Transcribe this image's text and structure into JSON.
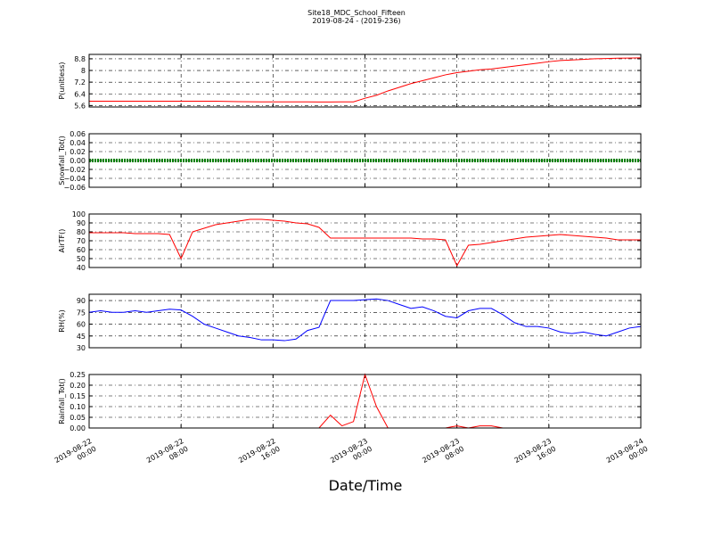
{
  "chart_data": [
    {
      "type": "line",
      "title": "Site18_MDC_School_Fifteen",
      "subtitle": "2019-08-24 - (2019-236)",
      "ylabel": "P(unitless)",
      "x": [
        "2019-08-22 00:00",
        "2019-08-22 01:00",
        "2019-08-22 02:00",
        "2019-08-22 03:00",
        "2019-08-22 04:00",
        "2019-08-22 05:00",
        "2019-08-22 06:00",
        "2019-08-22 07:00",
        "2019-08-22 08:00",
        "2019-08-22 09:00",
        "2019-08-22 10:00",
        "2019-08-22 11:00",
        "2019-08-22 12:00",
        "2019-08-22 13:00",
        "2019-08-22 14:00",
        "2019-08-22 15:00",
        "2019-08-22 16:00",
        "2019-08-22 17:00",
        "2019-08-22 18:00",
        "2019-08-22 19:00",
        "2019-08-22 20:00",
        "2019-08-22 21:00",
        "2019-08-22 22:00",
        "2019-08-22 23:00",
        "2019-08-23 00:00",
        "2019-08-23 01:00",
        "2019-08-23 02:00",
        "2019-08-23 03:00",
        "2019-08-23 04:00",
        "2019-08-23 05:00",
        "2019-08-23 06:00",
        "2019-08-23 07:00",
        "2019-08-23 08:00",
        "2019-08-23 09:00",
        "2019-08-23 10:00",
        "2019-08-23 11:00",
        "2019-08-23 12:00",
        "2019-08-23 13:00",
        "2019-08-23 14:00",
        "2019-08-23 15:00",
        "2019-08-23 16:00",
        "2019-08-23 17:00",
        "2019-08-23 18:00",
        "2019-08-23 19:00",
        "2019-08-23 20:00",
        "2019-08-23 21:00",
        "2019-08-23 22:00",
        "2019-08-23 23:00",
        "2019-08-24 00:00"
      ],
      "series": [
        {
          "color": "#ff0000",
          "values": [
            5.9,
            5.9,
            5.9,
            5.9,
            5.9,
            5.9,
            5.9,
            5.9,
            5.9,
            5.9,
            5.9,
            5.9,
            5.88,
            5.87,
            5.86,
            5.85,
            5.85,
            5.85,
            5.85,
            5.85,
            5.84,
            5.84,
            5.85,
            5.85,
            6.1,
            6.3,
            6.6,
            6.85,
            7.1,
            7.3,
            7.5,
            7.7,
            7.85,
            7.95,
            8.05,
            8.1,
            8.2,
            8.3,
            8.4,
            8.5,
            8.6,
            8.68,
            8.72,
            8.76,
            8.8,
            8.82,
            8.84,
            8.85,
            8.86
          ]
        }
      ],
      "xlim": [
        "2019-08-22 00:00",
        "2019-08-24 00:00"
      ],
      "xticks": [
        "2019-08-22 00:00",
        "2019-08-22 08:00",
        "2019-08-22 16:00",
        "2019-08-23 00:00",
        "2019-08-23 08:00",
        "2019-08-23 16:00",
        "2019-08-24 00:00"
      ],
      "ylim": [
        5.5,
        9.1
      ],
      "yticks": [
        5.6,
        6.4,
        7.2,
        8.0,
        8.8
      ],
      "grid": true
    },
    {
      "type": "line",
      "ylabel": "Snowfall_Tot()",
      "x": [
        "2019-08-22 00:00",
        "2019-08-22 01:00",
        "2019-08-22 02:00",
        "2019-08-22 03:00",
        "2019-08-22 04:00",
        "2019-08-22 05:00",
        "2019-08-22 06:00",
        "2019-08-22 07:00",
        "2019-08-22 08:00",
        "2019-08-22 09:00",
        "2019-08-22 10:00",
        "2019-08-22 11:00",
        "2019-08-22 12:00",
        "2019-08-22 13:00",
        "2019-08-22 14:00",
        "2019-08-22 15:00",
        "2019-08-22 16:00",
        "2019-08-22 17:00",
        "2019-08-22 18:00",
        "2019-08-22 19:00",
        "2019-08-22 20:00",
        "2019-08-22 21:00",
        "2019-08-22 22:00",
        "2019-08-22 23:00",
        "2019-08-23 00:00",
        "2019-08-23 01:00",
        "2019-08-23 02:00",
        "2019-08-23 03:00",
        "2019-08-23 04:00",
        "2019-08-23 05:00",
        "2019-08-23 06:00",
        "2019-08-23 07:00",
        "2019-08-23 08:00",
        "2019-08-23 09:00",
        "2019-08-23 10:00",
        "2019-08-23 11:00",
        "2019-08-23 12:00",
        "2019-08-23 13:00",
        "2019-08-23 14:00",
        "2019-08-23 15:00",
        "2019-08-23 16:00",
        "2019-08-23 17:00",
        "2019-08-23 18:00",
        "2019-08-23 19:00",
        "2019-08-23 20:00",
        "2019-08-23 21:00",
        "2019-08-23 22:00",
        "2019-08-23 23:00",
        "2019-08-24 00:00"
      ],
      "series": [
        {
          "color": "#008000",
          "values": [
            0,
            0,
            0,
            0,
            0,
            0,
            0,
            0,
            0,
            0,
            0,
            0,
            0,
            0,
            0,
            0,
            0,
            0,
            0,
            0,
            0,
            0,
            0,
            0,
            0,
            0,
            0,
            0,
            0,
            0,
            0,
            0,
            0,
            0,
            0,
            0,
            0,
            0,
            0,
            0,
            0,
            0,
            0,
            0,
            0,
            0,
            0,
            0,
            0
          ]
        }
      ],
      "xlim": [
        "2019-08-22 00:00",
        "2019-08-24 00:00"
      ],
      "xticks": [
        "2019-08-22 00:00",
        "2019-08-22 08:00",
        "2019-08-22 16:00",
        "2019-08-23 00:00",
        "2019-08-23 08:00",
        "2019-08-23 16:00",
        "2019-08-24 00:00"
      ],
      "ylim": [
        -0.06,
        0.06
      ],
      "yticks": [
        {
          "value": -0.06,
          "label": "−0.06"
        },
        {
          "value": -0.04,
          "label": "−0.04"
        },
        {
          "value": -0.02,
          "label": "−0.02"
        },
        {
          "value": 0,
          "label": "0.00"
        },
        0.02,
        0.04,
        0.06
      ],
      "grid": true
    },
    {
      "type": "line",
      "ylabel": "AirTF()",
      "x": [
        "2019-08-22 00:00",
        "2019-08-22 01:00",
        "2019-08-22 02:00",
        "2019-08-22 03:00",
        "2019-08-22 04:00",
        "2019-08-22 05:00",
        "2019-08-22 06:00",
        "2019-08-22 07:00",
        "2019-08-22 08:00",
        "2019-08-22 09:00",
        "2019-08-22 10:00",
        "2019-08-22 11:00",
        "2019-08-22 12:00",
        "2019-08-22 13:00",
        "2019-08-22 14:00",
        "2019-08-22 15:00",
        "2019-08-22 16:00",
        "2019-08-22 17:00",
        "2019-08-22 18:00",
        "2019-08-22 19:00",
        "2019-08-22 20:00",
        "2019-08-22 21:00",
        "2019-08-22 22:00",
        "2019-08-22 23:00",
        "2019-08-23 00:00",
        "2019-08-23 01:00",
        "2019-08-23 02:00",
        "2019-08-23 03:00",
        "2019-08-23 04:00",
        "2019-08-23 05:00",
        "2019-08-23 06:00",
        "2019-08-23 07:00",
        "2019-08-23 08:00",
        "2019-08-23 09:00",
        "2019-08-23 10:00",
        "2019-08-23 11:00",
        "2019-08-23 12:00",
        "2019-08-23 13:00",
        "2019-08-23 14:00",
        "2019-08-23 15:00",
        "2019-08-23 16:00",
        "2019-08-23 17:00",
        "2019-08-23 18:00",
        "2019-08-23 19:00",
        "2019-08-23 20:00",
        "2019-08-23 21:00",
        "2019-08-23 22:00",
        "2019-08-23 23:00",
        "2019-08-24 00:00"
      ],
      "series": [
        {
          "color": "#ff0000",
          "values": [
            79,
            79,
            79,
            79,
            78,
            78,
            78,
            77,
            50,
            80,
            84,
            88,
            90,
            92,
            94,
            94,
            93,
            92,
            90,
            89,
            85,
            73,
            73,
            73,
            73,
            73,
            73,
            73,
            73,
            72,
            72,
            71,
            42,
            65,
            66,
            68,
            70,
            72,
            74,
            75,
            76,
            77,
            76,
            75,
            74,
            73,
            71,
            71,
            71
          ]
        }
      ],
      "xlim": [
        "2019-08-22 00:00",
        "2019-08-24 00:00"
      ],
      "xticks": [
        "2019-08-22 00:00",
        "2019-08-22 08:00",
        "2019-08-22 16:00",
        "2019-08-23 00:00",
        "2019-08-23 08:00",
        "2019-08-23 16:00",
        "2019-08-24 00:00"
      ],
      "ylim": [
        40,
        100
      ],
      "yticks": [
        40,
        50,
        60,
        70,
        80,
        90,
        100
      ],
      "grid": true
    },
    {
      "type": "line",
      "ylabel": "RH(%)",
      "x": [
        "2019-08-22 00:00",
        "2019-08-22 01:00",
        "2019-08-22 02:00",
        "2019-08-22 03:00",
        "2019-08-22 04:00",
        "2019-08-22 05:00",
        "2019-08-22 06:00",
        "2019-08-22 07:00",
        "2019-08-22 08:00",
        "2019-08-22 09:00",
        "2019-08-22 10:00",
        "2019-08-22 11:00",
        "2019-08-22 12:00",
        "2019-08-22 13:00",
        "2019-08-22 14:00",
        "2019-08-22 15:00",
        "2019-08-22 16:00",
        "2019-08-22 17:00",
        "2019-08-22 18:00",
        "2019-08-22 19:00",
        "2019-08-22 20:00",
        "2019-08-22 21:00",
        "2019-08-22 22:00",
        "2019-08-22 23:00",
        "2019-08-23 00:00",
        "2019-08-23 01:00",
        "2019-08-23 02:00",
        "2019-08-23 03:00",
        "2019-08-23 04:00",
        "2019-08-23 05:00",
        "2019-08-23 06:00",
        "2019-08-23 07:00",
        "2019-08-23 08:00",
        "2019-08-23 09:00",
        "2019-08-23 10:00",
        "2019-08-23 11:00",
        "2019-08-23 12:00",
        "2019-08-23 13:00",
        "2019-08-23 14:00",
        "2019-08-23 15:00",
        "2019-08-23 16:00",
        "2019-08-23 17:00",
        "2019-08-23 18:00",
        "2019-08-23 19:00",
        "2019-08-23 20:00",
        "2019-08-23 21:00",
        "2019-08-23 22:00",
        "2019-08-23 23:00",
        "2019-08-24 00:00"
      ],
      "series": [
        {
          "color": "#0000ff",
          "values": [
            75,
            77,
            75,
            75,
            77,
            75,
            77,
            79,
            78,
            70,
            60,
            55,
            50,
            45,
            43,
            40,
            40,
            39,
            41,
            52,
            56,
            90,
            90,
            90,
            91,
            92,
            90,
            85,
            80,
            82,
            77,
            70,
            68,
            77,
            80,
            80,
            72,
            62,
            57,
            57,
            55,
            50,
            48,
            50,
            47,
            45,
            50,
            55,
            57
          ]
        }
      ],
      "xlim": [
        "2019-08-22 00:00",
        "2019-08-24 00:00"
      ],
      "xticks": [
        "2019-08-22 00:00",
        "2019-08-22 08:00",
        "2019-08-22 16:00",
        "2019-08-23 00:00",
        "2019-08-23 08:00",
        "2019-08-23 16:00",
        "2019-08-24 00:00"
      ],
      "ylim": [
        30,
        98
      ],
      "yticks": [
        30,
        45,
        60,
        75,
        90
      ],
      "grid": true
    },
    {
      "type": "line",
      "ylabel": "Rainfall_Tot()",
      "xlabel": "Date/Time",
      "x": [
        "2019-08-22 00:00",
        "2019-08-22 01:00",
        "2019-08-22 02:00",
        "2019-08-22 03:00",
        "2019-08-22 04:00",
        "2019-08-22 05:00",
        "2019-08-22 06:00",
        "2019-08-22 07:00",
        "2019-08-22 08:00",
        "2019-08-22 09:00",
        "2019-08-22 10:00",
        "2019-08-22 11:00",
        "2019-08-22 12:00",
        "2019-08-22 13:00",
        "2019-08-22 14:00",
        "2019-08-22 15:00",
        "2019-08-22 16:00",
        "2019-08-22 17:00",
        "2019-08-22 18:00",
        "2019-08-22 19:00",
        "2019-08-22 20:00",
        "2019-08-22 21:00",
        "2019-08-22 22:00",
        "2019-08-22 23:00",
        "2019-08-23 00:00",
        "2019-08-23 01:00",
        "2019-08-23 02:00",
        "2019-08-23 03:00",
        "2019-08-23 04:00",
        "2019-08-23 05:00",
        "2019-08-23 06:00",
        "2019-08-23 07:00",
        "2019-08-23 08:00",
        "2019-08-23 09:00",
        "2019-08-23 10:00",
        "2019-08-23 11:00",
        "2019-08-23 12:00",
        "2019-08-23 13:00",
        "2019-08-23 14:00",
        "2019-08-23 15:00",
        "2019-08-23 16:00",
        "2019-08-23 17:00",
        "2019-08-23 18:00",
        "2019-08-23 19:00",
        "2019-08-23 20:00",
        "2019-08-23 21:00",
        "2019-08-23 22:00",
        "2019-08-23 23:00",
        "2019-08-24 00:00"
      ],
      "series": [
        {
          "color": "#ff0000",
          "values": [
            0,
            0,
            0,
            0,
            0,
            0,
            0,
            0,
            0,
            0,
            0,
            0,
            0,
            0,
            0,
            0,
            0,
            0,
            0,
            0,
            0,
            0.06,
            0.01,
            0.03,
            0.25,
            0.1,
            0,
            0,
            0,
            0,
            0,
            0,
            0.01,
            0,
            0.01,
            0.01,
            0,
            0,
            0,
            0,
            0,
            0,
            0,
            0,
            0,
            0,
            0,
            0,
            0
          ]
        }
      ],
      "xlim": [
        "2019-08-22 00:00",
        "2019-08-24 00:00"
      ],
      "xticks": [
        "2019-08-22 00:00",
        "2019-08-22 08:00",
        "2019-08-22 16:00",
        "2019-08-23 00:00",
        "2019-08-23 08:00",
        "2019-08-23 16:00",
        "2019-08-24 00:00"
      ],
      "ylim": [
        0,
        0.25
      ],
      "yticks": [
        {
          "value": 0,
          "label": "0.00"
        },
        0.05,
        {
          "value": 0.1,
          "label": "0.10"
        },
        0.15,
        {
          "value": 0.2,
          "label": "0.20"
        },
        0.25
      ],
      "grid": true
    }
  ]
}
